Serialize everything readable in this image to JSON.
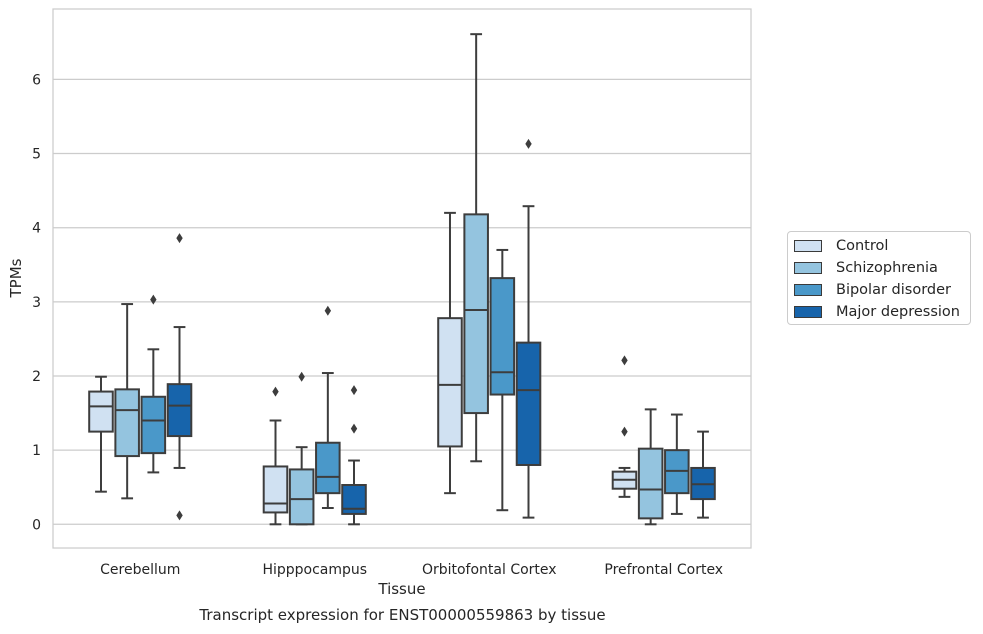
{
  "caption": "Transcript expression for ENST00000559863 by tissue",
  "chart_data": {
    "type": "boxplot",
    "xlabel": "Tissue",
    "ylabel": "TPMs",
    "ylim": [
      -0.33,
      6.95
    ],
    "yticks": [
      0,
      1,
      2,
      3,
      4,
      5,
      6
    ],
    "grid": "horizontal",
    "legend_position": "right",
    "categories": [
      "Cerebellum",
      "Hipppocampus",
      "Orbitofontal Cortex",
      "Prefrontal Cortex"
    ],
    "series": [
      {
        "name": "Control",
        "color": "#d0e1f2",
        "boxes": [
          {
            "whislo": 0.44,
            "q1": 1.25,
            "med": 1.59,
            "q3": 1.79,
            "whishi": 1.99,
            "fliers": []
          },
          {
            "whislo": 0.0,
            "q1": 0.16,
            "med": 0.28,
            "q3": 0.78,
            "whishi": 1.4,
            "fliers": [
              1.79
            ]
          },
          {
            "whislo": 0.42,
            "q1": 1.05,
            "med": 1.88,
            "q3": 2.78,
            "whishi": 4.2,
            "fliers": []
          },
          {
            "whislo": 0.37,
            "q1": 0.48,
            "med": 0.6,
            "q3": 0.71,
            "whishi": 0.76,
            "fliers": [
              1.25,
              2.21
            ]
          }
        ]
      },
      {
        "name": "Schizophrenia",
        "color": "#94c4df",
        "boxes": [
          {
            "whislo": 0.35,
            "q1": 0.92,
            "med": 1.54,
            "q3": 1.82,
            "whishi": 2.97,
            "fliers": []
          },
          {
            "whislo": 0.0,
            "q1": 0.0,
            "med": 0.34,
            "q3": 0.74,
            "whishi": 1.04,
            "fliers": [
              1.99
            ]
          },
          {
            "whislo": 0.85,
            "q1": 1.5,
            "med": 2.89,
            "q3": 4.18,
            "whishi": 6.61,
            "fliers": []
          },
          {
            "whislo": 0.0,
            "q1": 0.08,
            "med": 0.47,
            "q3": 1.02,
            "whishi": 1.55,
            "fliers": []
          }
        ]
      },
      {
        "name": "Bipolar disorder",
        "color": "#4a98c9",
        "boxes": [
          {
            "whislo": 0.7,
            "q1": 0.96,
            "med": 1.4,
            "q3": 1.72,
            "whishi": 2.36,
            "fliers": [
              3.03
            ]
          },
          {
            "whislo": 0.22,
            "q1": 0.42,
            "med": 0.64,
            "q3": 1.1,
            "whishi": 2.04,
            "fliers": [
              2.88
            ]
          },
          {
            "whislo": 0.19,
            "q1": 1.75,
            "med": 2.05,
            "q3": 3.32,
            "whishi": 3.7,
            "fliers": []
          },
          {
            "whislo": 0.14,
            "q1": 0.42,
            "med": 0.72,
            "q3": 1.0,
            "whishi": 1.48,
            "fliers": []
          }
        ]
      },
      {
        "name": "Major depression",
        "color": "#1764ab",
        "boxes": [
          {
            "whislo": 0.76,
            "q1": 1.19,
            "med": 1.6,
            "q3": 1.89,
            "whishi": 2.66,
            "fliers": [
              0.12,
              3.86
            ]
          },
          {
            "whislo": 0.0,
            "q1": 0.14,
            "med": 0.21,
            "q3": 0.53,
            "whishi": 0.86,
            "fliers": [
              1.29,
              1.81
            ]
          },
          {
            "whislo": 0.09,
            "q1": 0.8,
            "med": 1.81,
            "q3": 2.45,
            "whishi": 4.29,
            "fliers": [
              5.13
            ]
          },
          {
            "whislo": 0.09,
            "q1": 0.34,
            "med": 0.54,
            "q3": 0.76,
            "whishi": 1.25,
            "fliers": []
          }
        ]
      }
    ]
  }
}
